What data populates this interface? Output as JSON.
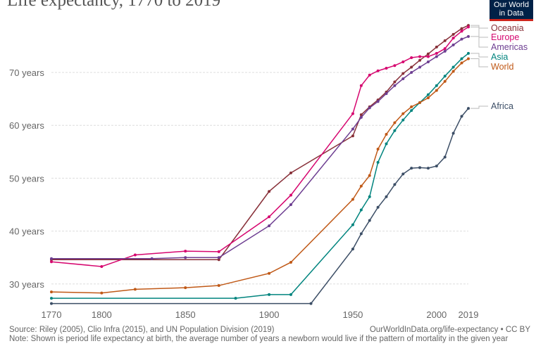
{
  "title": "Life expectancy, 1770 to 2019",
  "logo": {
    "line1": "Our World",
    "line2": "in Data",
    "bg": "#002147",
    "accent": "#ce261e"
  },
  "footer": {
    "source": "Source: Riley (2005), Clio Infra (2015), and UN Population Division (2019)",
    "url": "OurWorldInData.org/life-expectancy • CC BY",
    "note": "Note: Shown is period life expectancy at birth, the average number of years a newborn would live if the pattern of mortality in the given year"
  },
  "chart_data": {
    "type": "line",
    "title": "Life expectancy, 1770 to 2019",
    "xlim": [
      1770,
      2019
    ],
    "ylim": [
      26,
      80
    ],
    "x_ticks": [
      1770,
      1800,
      1850,
      1900,
      1950,
      2000,
      2019
    ],
    "y_ticks": [
      {
        "v": 30,
        "label": "30 years"
      },
      {
        "v": 40,
        "label": "40 years"
      },
      {
        "v": 50,
        "label": "50 years"
      },
      {
        "v": 60,
        "label": "60 years"
      },
      {
        "v": 70,
        "label": "70 years"
      }
    ],
    "grid": "horizontal dashed",
    "legend": "right, labels at line ends",
    "series": [
      {
        "name": "Oceania",
        "color": "#883039",
        "x": [
          1770,
          1870,
          1900,
          1913,
          1950,
          1955,
          1960,
          1965,
          1970,
          1975,
          1980,
          1985,
          1990,
          1995,
          2000,
          2005,
          2010,
          2015,
          2019
        ],
        "y": [
          34.6,
          34.6,
          47.5,
          51,
          58,
          62,
          63.5,
          64.8,
          66.3,
          68.2,
          69.8,
          71,
          72.3,
          73.5,
          74.8,
          76,
          77.2,
          78.3,
          78.9
        ]
      },
      {
        "name": "Europe",
        "color": "#d6066f",
        "x": [
          1770,
          1800,
          1820,
          1850,
          1870,
          1900,
          1913,
          1950,
          1955,
          1960,
          1965,
          1970,
          1975,
          1980,
          1985,
          1990,
          1995,
          2000,
          2005,
          2010,
          2015,
          2019
        ],
        "y": [
          34.2,
          33.3,
          35.5,
          36.2,
          36.1,
          42.7,
          46.8,
          62.2,
          67.5,
          69.5,
          70.3,
          70.8,
          71.3,
          72,
          72.8,
          73,
          73,
          73.6,
          74.5,
          76.5,
          77.8,
          78.6
        ]
      },
      {
        "name": "Americas",
        "color": "#6d3e91",
        "x": [
          1770,
          1830,
          1850,
          1870,
          1900,
          1913,
          1950,
          1955,
          1960,
          1965,
          1970,
          1975,
          1980,
          1985,
          1990,
          1995,
          2000,
          2005,
          2010,
          2015,
          2019
        ],
        "y": [
          34.8,
          34.8,
          35,
          35,
          41,
          45,
          59.3,
          61.5,
          63.3,
          64.5,
          66,
          67.5,
          68.8,
          70,
          71,
          72,
          73,
          74,
          75.2,
          76.3,
          76.8
        ]
      },
      {
        "name": "Asia",
        "color": "#00847e",
        "x": [
          1770,
          1880,
          1900,
          1913,
          1950,
          1955,
          1960,
          1965,
          1970,
          1975,
          1980,
          1985,
          1990,
          1995,
          2000,
          2005,
          2010,
          2015,
          2019
        ],
        "y": [
          27.3,
          27.3,
          28,
          28,
          41.2,
          44,
          46.5,
          53,
          56.5,
          59,
          61,
          62.8,
          64.3,
          65.8,
          67.5,
          69.3,
          71,
          72.6,
          73.6
        ]
      },
      {
        "name": "World",
        "color": "#c05917",
        "x": [
          1770,
          1800,
          1820,
          1850,
          1870,
          1900,
          1913,
          1950,
          1955,
          1960,
          1965,
          1970,
          1975,
          1980,
          1985,
          1990,
          1995,
          2000,
          2005,
          2010,
          2015,
          2019
        ],
        "y": [
          28.5,
          28.3,
          29,
          29.3,
          29.7,
          32,
          34.1,
          46,
          48.5,
          50.5,
          55.5,
          58.3,
          60.5,
          62.2,
          63.5,
          64.3,
          65.2,
          66.6,
          68.3,
          70.2,
          71.8,
          72.6
        ]
      },
      {
        "name": "Africa",
        "color": "#3c4e66",
        "x": [
          1770,
          1925,
          1950,
          1955,
          1960,
          1965,
          1970,
          1975,
          1980,
          1985,
          1990,
          1995,
          2000,
          2005,
          2010,
          2015,
          2019
        ],
        "y": [
          26.3,
          26.3,
          36.6,
          39.5,
          42,
          44.5,
          46.5,
          48.8,
          50.8,
          51.9,
          52,
          51.9,
          52.3,
          54,
          58.5,
          61.7,
          63.2
        ]
      }
    ]
  }
}
